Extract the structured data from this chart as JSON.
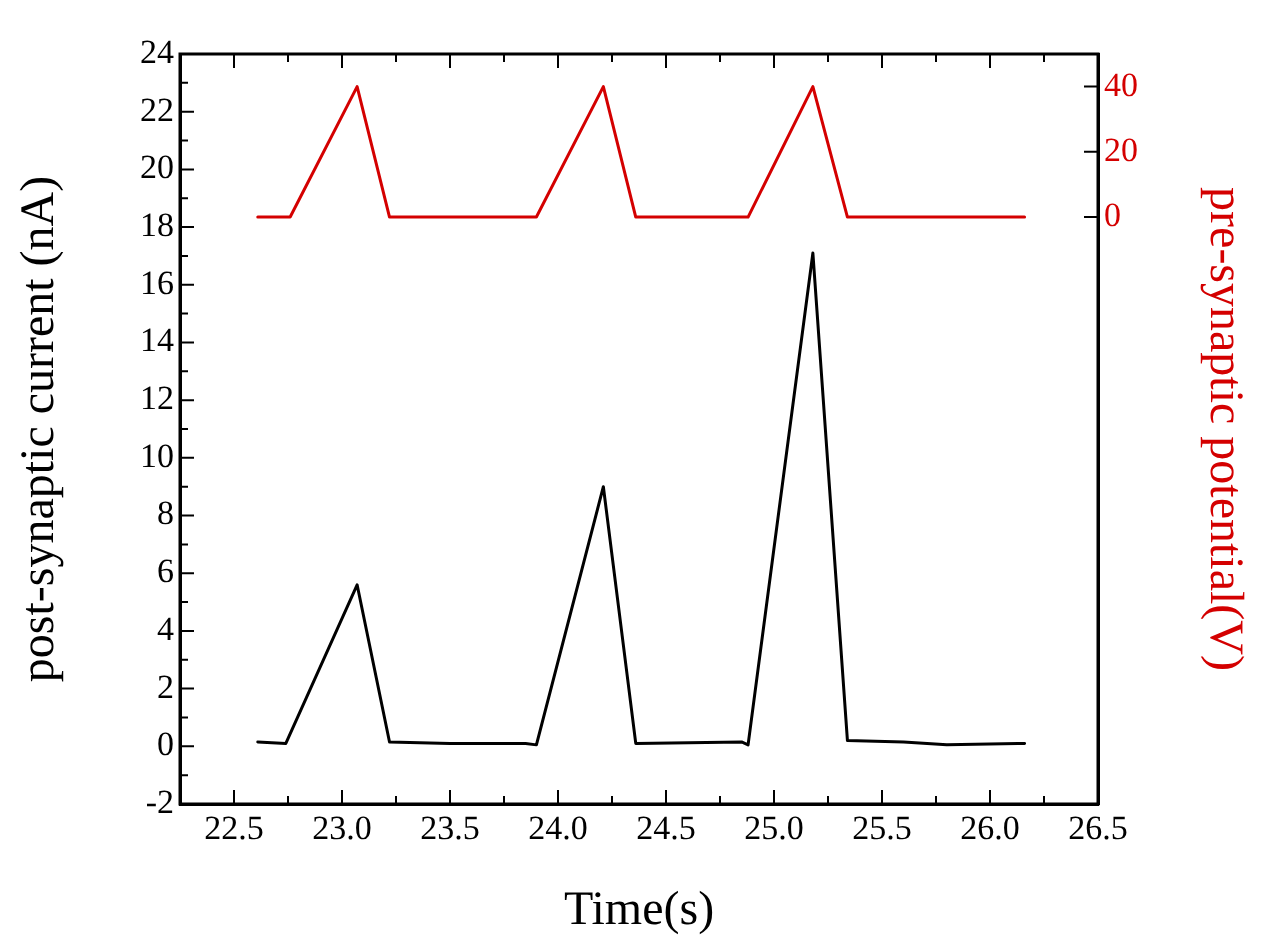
{
  "chart_data": {
    "type": "line",
    "xlabel": "Time(s)",
    "ylabel": "post-synaptic current (nA)",
    "y2label": "pre-synaptic potential(V)",
    "xlim": [
      22.25,
      26.5
    ],
    "xticks": [
      {
        "value": 22.5,
        "label": "22.5"
      },
      {
        "value": 23,
        "label": "23.0"
      },
      {
        "value": 23.5,
        "label": "23.5"
      },
      {
        "value": 24,
        "label": "24.0"
      },
      {
        "value": 24.5,
        "label": "24.5"
      },
      {
        "value": 25,
        "label": "25.0"
      },
      {
        "value": 25.5,
        "label": "25.5"
      },
      {
        "value": 26,
        "label": "26.0"
      },
      {
        "value": 26.5,
        "label": "26.5"
      }
    ],
    "ylim": [
      -2,
      24
    ],
    "yticks": [
      -2,
      0,
      2,
      4,
      6,
      8,
      10,
      12,
      14,
      16,
      18,
      20,
      22,
      24
    ],
    "y2lim": [
      -180,
      50
    ],
    "y2ticks": [
      0,
      20,
      40
    ],
    "grid": false,
    "legend": false,
    "marker": "none",
    "line_style": "solid",
    "series": [
      {
        "color": "#000000",
        "x": [
          22.61,
          22.74,
          23.07,
          23.22,
          23.5,
          23.85,
          23.9,
          24.21,
          24.36,
          24.85,
          24.88,
          25.18,
          25.34,
          25.6,
          25.8,
          26.16
        ],
        "values": [
          0.15,
          0.1,
          5.6,
          0.15,
          0.1,
          0.1,
          0.05,
          9.0,
          0.1,
          0.15,
          0.05,
          17.1,
          0.2,
          0.15,
          0.05,
          0.1
        ]
      },
      {
        "color": "#d40000",
        "axis": "y2",
        "x": [
          22.61,
          22.76,
          23.07,
          23.22,
          23.9,
          24.21,
          24.36,
          24.88,
          25.18,
          25.34,
          26.16
        ],
        "values": [
          0,
          0,
          40,
          0,
          0,
          40,
          0,
          0,
          40,
          0,
          0
        ]
      }
    ]
  }
}
